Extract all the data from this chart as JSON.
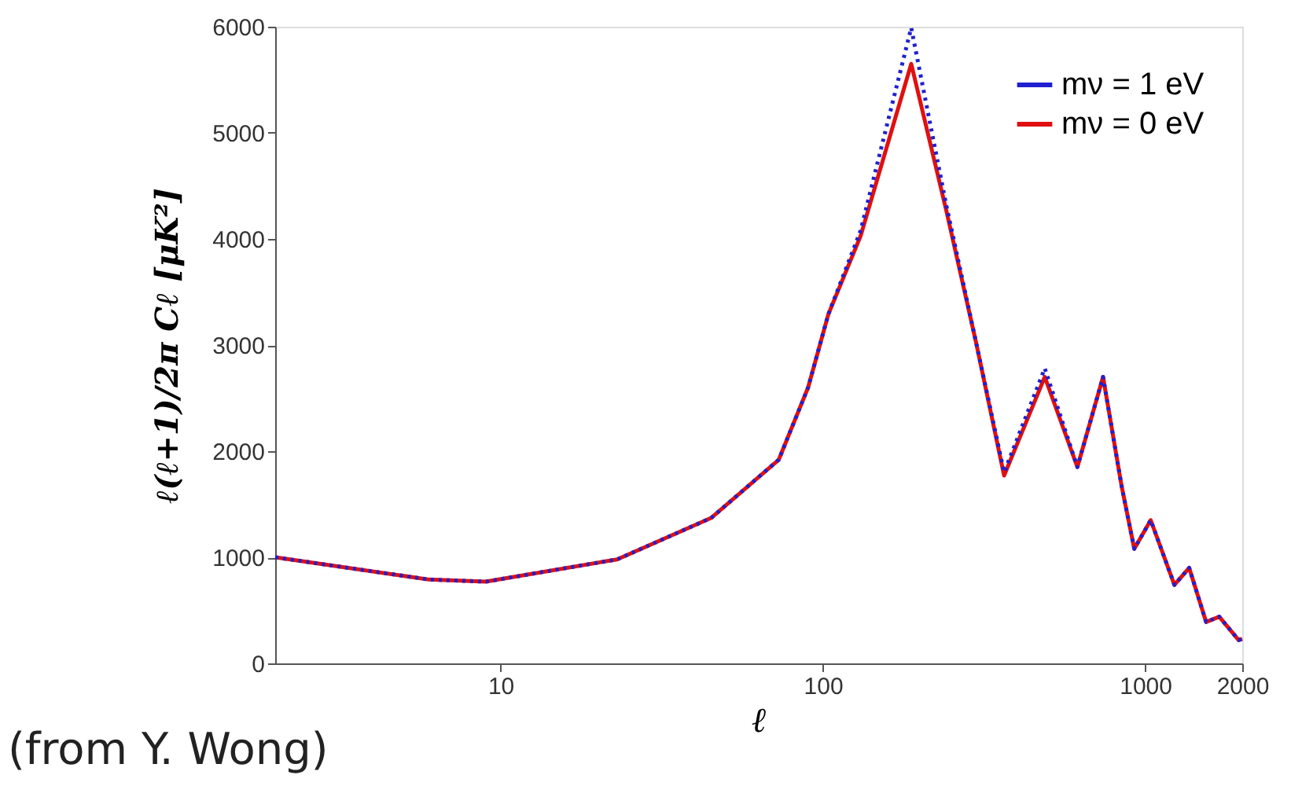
{
  "chart_data": {
    "type": "line",
    "xlabel": "ℓ",
    "ylabel": "ℓ(ℓ+1)/2π Cℓ [μK²]",
    "annotations": [
      "(from Y. Wong)"
    ],
    "log": "x",
    "xlim": [
      2,
      2000
    ],
    "xticks": [
      10,
      100,
      1000,
      2000
    ],
    "ylim": [
      0,
      6000
    ],
    "yticks": [
      0,
      1000,
      2000,
      3000,
      4000,
      5000,
      6000
    ],
    "grid": false,
    "legend": "top right",
    "marker": "none",
    "x": [
      2,
      6,
      9,
      23,
      45,
      73,
      90,
      104,
      131,
      188,
      241,
      298,
      365,
      488,
      616,
      740,
      845,
      925,
      1040,
      1232,
      1369,
      1545,
      1697,
      1949,
      2000
    ],
    "series": [
      {
        "name": "mν = 1 eV",
        "color": "#2020d0",
        "line_style": "dotted",
        "values": [
          1000,
          790,
          770,
          980,
          1370,
          1920,
          2600,
          3290,
          4080,
          5990,
          4330,
          3040,
          1800,
          2780,
          1850,
          2700,
          1670,
          1080,
          1350,
          740,
          900,
          390,
          440,
          220,
          230
        ]
      },
      {
        "name": "mν = 0 eV",
        "color": "#e01010",
        "line_style": "solid",
        "values": [
          1000,
          790,
          770,
          980,
          1370,
          1920,
          2600,
          3290,
          4030,
          5650,
          4280,
          3040,
          1770,
          2700,
          1850,
          2700,
          1670,
          1080,
          1350,
          740,
          900,
          390,
          440,
          220,
          230
        ]
      }
    ]
  }
}
